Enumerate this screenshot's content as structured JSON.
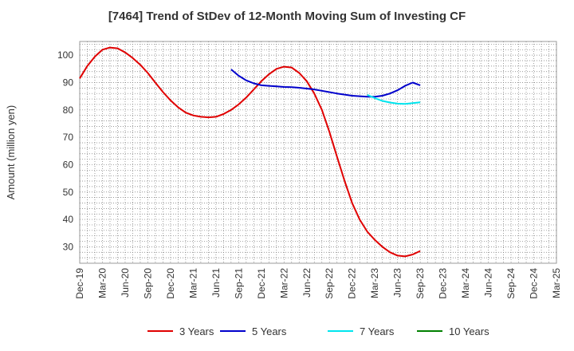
{
  "chart_data": {
    "type": "line",
    "title": "[7464]  Trend of StDev of 12-Month Moving Sum of Investing CF",
    "ylabel": "Amount (million yen)",
    "xlabel": "",
    "ylim": [
      24,
      105
    ],
    "yticks": [
      30,
      40,
      50,
      60,
      70,
      80,
      90,
      100
    ],
    "categories": [
      "Dec-19",
      "Mar-20",
      "Jun-20",
      "Sep-20",
      "Dec-20",
      "Mar-21",
      "Jun-21",
      "Sep-21",
      "Dec-21",
      "Mar-22",
      "Jun-22",
      "Sep-22",
      "Dec-22",
      "Mar-23",
      "Jun-23",
      "Sep-23",
      "Dec-23",
      "Mar-24",
      "Jun-24",
      "Sep-24",
      "Dec-24",
      "Mar-25"
    ],
    "grid": true,
    "legend_position": "bottom",
    "series": [
      {
        "name": "3 Years",
        "color": "#e00000",
        "points": [
          [
            0,
            91.5
          ],
          [
            0.33,
            96
          ],
          [
            0.67,
            99.5
          ],
          [
            1,
            102
          ],
          [
            1.33,
            102.8
          ],
          [
            1.67,
            102.5
          ],
          [
            2,
            101
          ],
          [
            2.33,
            99
          ],
          [
            2.67,
            96.5
          ],
          [
            3,
            93.5
          ],
          [
            3.33,
            90
          ],
          [
            3.67,
            86.5
          ],
          [
            4,
            83.5
          ],
          [
            4.33,
            81
          ],
          [
            4.67,
            79
          ],
          [
            5,
            78
          ],
          [
            5.33,
            77.5
          ],
          [
            5.67,
            77.3
          ],
          [
            6,
            77.5
          ],
          [
            6.33,
            78.5
          ],
          [
            6.67,
            80
          ],
          [
            7,
            82
          ],
          [
            7.33,
            84.5
          ],
          [
            7.67,
            87.5
          ],
          [
            8,
            90.5
          ],
          [
            8.33,
            93
          ],
          [
            8.67,
            95
          ],
          [
            9,
            95.8
          ],
          [
            9.33,
            95.5
          ],
          [
            9.67,
            93.5
          ],
          [
            10,
            90.5
          ],
          [
            10.33,
            86
          ],
          [
            10.67,
            80
          ],
          [
            11,
            72
          ],
          [
            11.33,
            63
          ],
          [
            11.67,
            54
          ],
          [
            12,
            46
          ],
          [
            12.33,
            40
          ],
          [
            12.67,
            35.5
          ],
          [
            13,
            32.5
          ],
          [
            13.33,
            30
          ],
          [
            13.67,
            28
          ],
          [
            14,
            26.8
          ],
          [
            14.33,
            26.5
          ],
          [
            14.67,
            27.2
          ],
          [
            15,
            28.5
          ]
        ]
      },
      {
        "name": "5 Years",
        "color": "#0000cc",
        "points": [
          [
            6.67,
            94.8
          ],
          [
            7,
            92.5
          ],
          [
            7.33,
            90.8
          ],
          [
            7.67,
            89.7
          ],
          [
            8,
            89
          ],
          [
            8.33,
            88.8
          ],
          [
            8.67,
            88.6
          ],
          [
            9,
            88.4
          ],
          [
            9.33,
            88.3
          ],
          [
            9.67,
            88.1
          ],
          [
            10,
            87.8
          ],
          [
            10.33,
            87.5
          ],
          [
            10.67,
            87
          ],
          [
            11,
            86.5
          ],
          [
            11.33,
            86
          ],
          [
            11.67,
            85.6
          ],
          [
            12,
            85.2
          ],
          [
            12.33,
            85
          ],
          [
            12.67,
            84.8
          ],
          [
            13,
            84.8
          ],
          [
            13.33,
            85.2
          ],
          [
            13.67,
            86
          ],
          [
            14,
            87.2
          ],
          [
            14.33,
            88.8
          ],
          [
            14.67,
            90
          ],
          [
            15,
            89
          ]
        ]
      },
      {
        "name": "7 Years",
        "color": "#00e5ee",
        "points": [
          [
            12.67,
            85.5
          ],
          [
            13,
            84.3
          ],
          [
            13.33,
            83.3
          ],
          [
            13.67,
            82.7
          ],
          [
            14,
            82.3
          ],
          [
            14.33,
            82.2
          ],
          [
            14.67,
            82.5
          ],
          [
            15,
            82.8
          ]
        ]
      },
      {
        "name": "10 Years",
        "color": "#008000",
        "points": []
      }
    ]
  }
}
